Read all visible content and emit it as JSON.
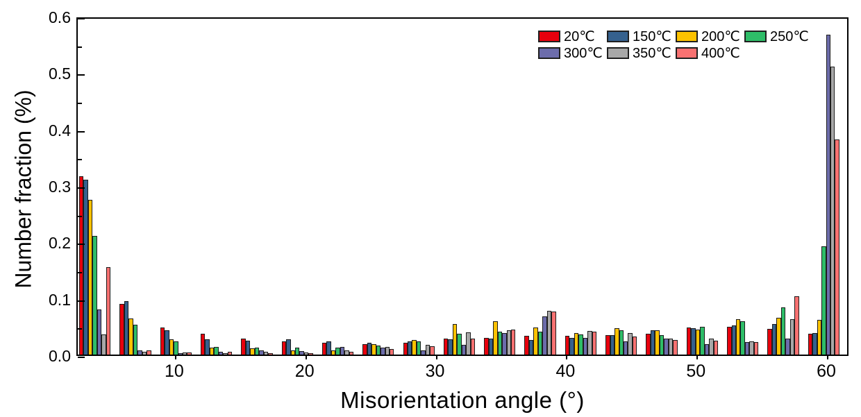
{
  "chart_data": {
    "type": "bar",
    "title": "",
    "xlabel": "Misorientation angle (°)",
    "ylabel": "Number fraction (%)",
    "xlim": [
      2.5,
      61.7
    ],
    "ylim": [
      0,
      0.6
    ],
    "x_ticks": [
      10,
      20,
      30,
      40,
      50,
      60
    ],
    "y_ticks": [
      0.0,
      0.1,
      0.2,
      0.3,
      0.4,
      0.5,
      0.6
    ],
    "y_minor_tick_step": 0.05,
    "grid": false,
    "legend_position": "top-right-inside",
    "bin_width_deg": 3.1,
    "bin_centers": [
      4.1,
      7.2,
      10.3,
      13.4,
      16.5,
      19.6,
      22.7,
      25.8,
      28.9,
      32.0,
      35.1,
      38.3,
      41.4,
      44.5,
      47.6,
      50.7,
      53.8,
      56.9,
      60.0
    ],
    "series": [
      {
        "name": "20℃",
        "color": "#e8000d",
        "values": [
          0.318,
          0.091,
          0.048,
          0.037,
          0.028,
          0.023,
          0.021,
          0.018,
          0.021,
          0.028,
          0.03,
          0.033,
          0.034,
          0.035,
          0.037,
          0.048,
          0.05,
          0.046,
          0.037
        ]
      },
      {
        "name": "150℃",
        "color": "#35618e",
        "values": [
          0.312,
          0.096,
          0.044,
          0.027,
          0.025,
          0.027,
          0.023,
          0.021,
          0.024,
          0.027,
          0.028,
          0.026,
          0.03,
          0.035,
          0.044,
          0.047,
          0.052,
          0.055,
          0.038
        ]
      },
      {
        "name": "200℃",
        "color": "#fcc200",
        "values": [
          0.276,
          0.065,
          0.027,
          0.012,
          0.011,
          0.008,
          0.008,
          0.019,
          0.026,
          0.054,
          0.06,
          0.048,
          0.038,
          0.047,
          0.043,
          0.045,
          0.063,
          0.066,
          0.062
        ]
      },
      {
        "name": "250℃",
        "color": "#2ebd68",
        "values": [
          0.212,
          0.053,
          0.023,
          0.014,
          0.012,
          0.012,
          0.012,
          0.016,
          0.023,
          0.037,
          0.041,
          0.041,
          0.036,
          0.044,
          0.035,
          0.05,
          0.06,
          0.084,
          0.194
        ]
      },
      {
        "name": "300℃",
        "color": "#6c6cab",
        "values": [
          0.081,
          0.007,
          0.002,
          0.005,
          0.007,
          0.006,
          0.014,
          0.012,
          0.008,
          0.017,
          0.039,
          0.068,
          0.03,
          0.023,
          0.028,
          0.018,
          0.022,
          0.029,
          0.572
        ]
      },
      {
        "name": "350℃",
        "color": "#a8a8a8",
        "values": [
          0.036,
          0.005,
          0.004,
          0.003,
          0.005,
          0.004,
          0.007,
          0.014,
          0.017,
          0.04,
          0.044,
          0.078,
          0.042,
          0.039,
          0.029,
          0.028,
          0.023,
          0.063,
          0.514
        ]
      },
      {
        "name": "400℃",
        "color": "#f87171",
        "values": [
          0.156,
          0.007,
          0.004,
          0.005,
          0.003,
          0.003,
          0.005,
          0.01,
          0.015,
          0.028,
          0.045,
          0.077,
          0.041,
          0.032,
          0.026,
          0.025,
          0.022,
          0.104,
          0.384
        ]
      }
    ]
  }
}
